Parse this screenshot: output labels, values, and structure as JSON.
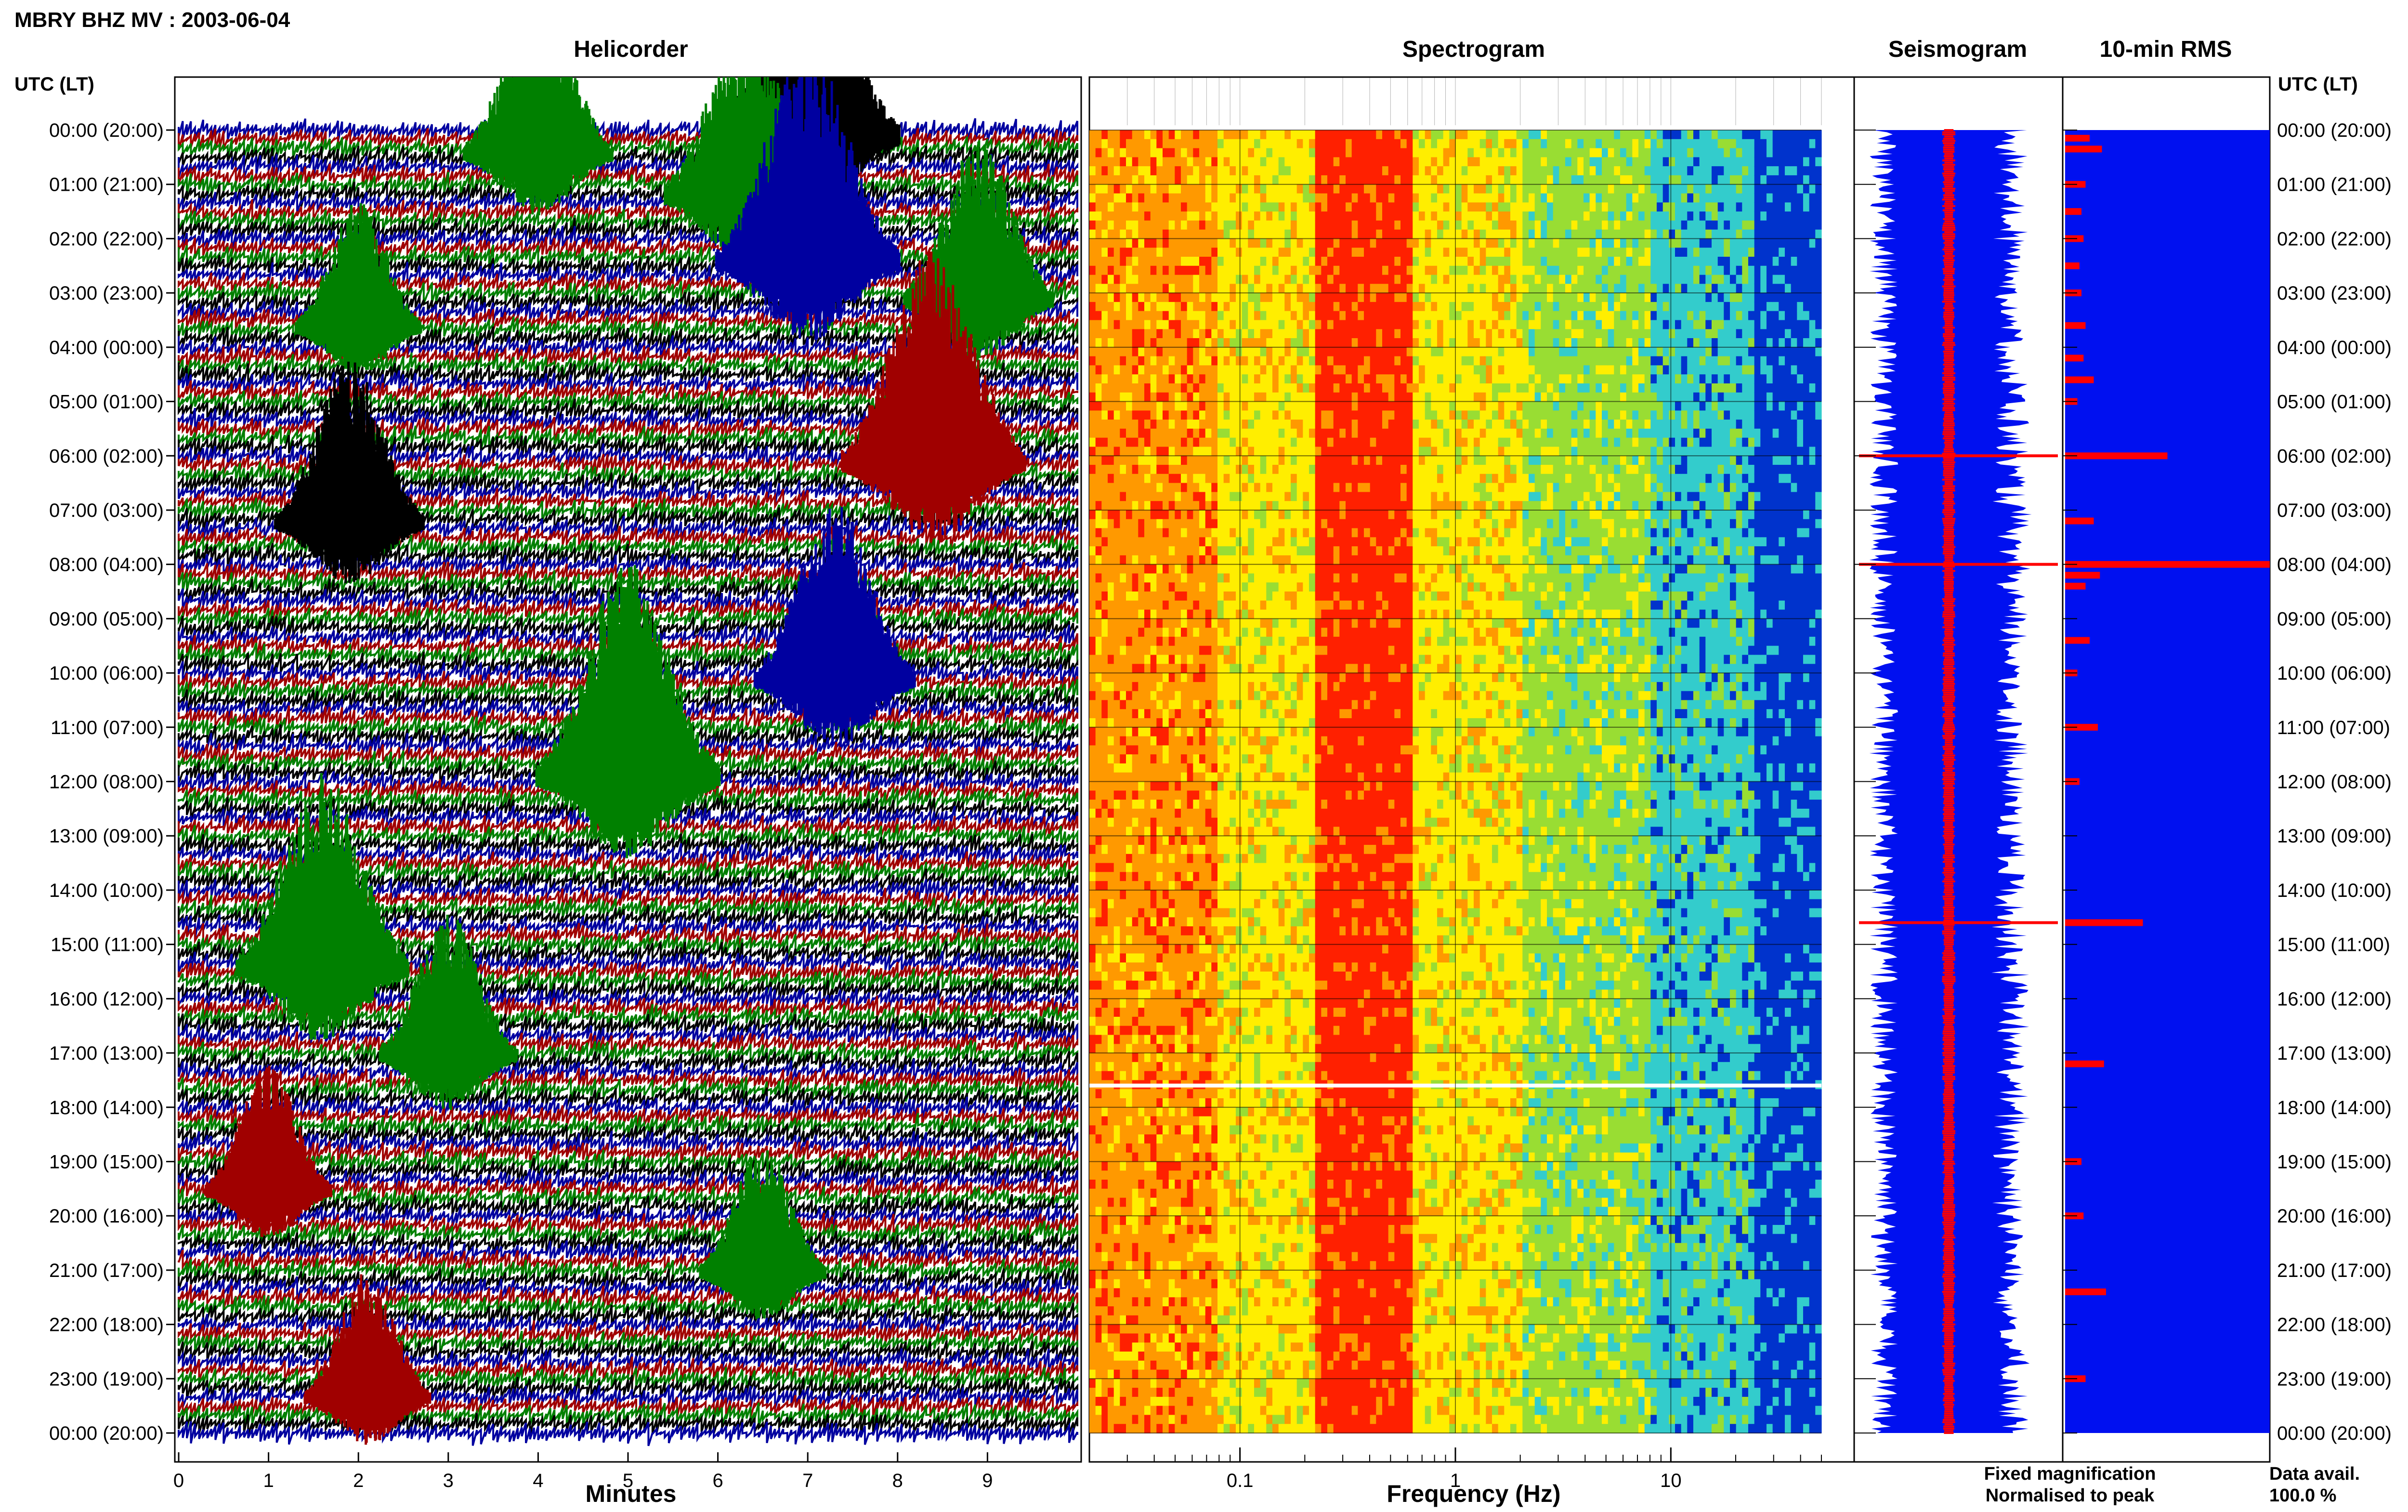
{
  "page_title": "MBRY BHZ MV : 2003-06-04",
  "panel_titles": {
    "helicorder": "Helicorder",
    "spectrogram": "Spectrogram",
    "seismogram": "Seismogram",
    "rms": "10-min RMS"
  },
  "time_axis_header": "UTC (LT)",
  "time_labels": [
    "00:00 (20:00)",
    "01:00 (21:00)",
    "02:00 (22:00)",
    "03:00 (23:00)",
    "04:00 (00:00)",
    "05:00 (01:00)",
    "06:00 (02:00)",
    "07:00 (03:00)",
    "08:00 (04:00)",
    "09:00 (05:00)",
    "10:00 (06:00)",
    "11:00 (07:00)",
    "12:00 (08:00)",
    "13:00 (09:00)",
    "14:00 (10:00)",
    "15:00 (11:00)",
    "16:00 (12:00)",
    "17:00 (13:00)",
    "18:00 (14:00)",
    "19:00 (15:00)",
    "20:00 (16:00)",
    "21:00 (17:00)",
    "22:00 (18:00)",
    "23:00 (19:00)",
    "00:00 (20:00)"
  ],
  "legend": {
    "fixed": "Fixed magnification",
    "fixed_color": "#1030ff",
    "normalised": "Normalised to peak",
    "normalised_color": "#ff1010"
  },
  "availability": {
    "label": "Data avail.",
    "value": "100.0 %"
  },
  "colors": {
    "trace_cycle": [
      "#0000a0",
      "#a00000",
      "#008000",
      "#000000"
    ],
    "seismogram_fill": "#0010f0",
    "seismogram_peak": "#ff0000",
    "rms_fill": "#0010f0",
    "rms_bar": "#ff0000",
    "spectrogram_scale": [
      "#ff2000",
      "#ff9900",
      "#ffee00",
      "#99dd33",
      "#33cccc",
      "#0033cc"
    ]
  },
  "chart_data": [
    {
      "type": "line",
      "name": "helicorder",
      "title": "Helicorder",
      "xlabel": "Minutes",
      "ylabel": "UTC (LT)",
      "x_ticks": [
        "0",
        "1",
        "2",
        "3",
        "4",
        "5",
        "6",
        "7",
        "8",
        "9"
      ],
      "xlim": [
        0,
        10
      ],
      "rows_per_hour": 6,
      "event_bursts": [
        {
          "hour": 0.2,
          "minute": 7.0,
          "color": "#000000",
          "amplitude": 1.0
        },
        {
          "hour": 0.5,
          "minute": 4.0,
          "color": "#008000",
          "amplitude": 0.7
        },
        {
          "hour": 1.3,
          "minute": 6.3,
          "color": "#008000",
          "amplitude": 0.8
        },
        {
          "hour": 2.5,
          "minute": 7.0,
          "color": "#0000a0",
          "amplitude": 1.0
        },
        {
          "hour": 3.2,
          "minute": 8.9,
          "color": "#008000",
          "amplitude": 0.7
        },
        {
          "hour": 3.7,
          "minute": 2.0,
          "color": "#008000",
          "amplitude": 0.5
        },
        {
          "hour": 6.2,
          "minute": 8.4,
          "color": "#a00000",
          "amplitude": 1.0
        },
        {
          "hour": 7.3,
          "minute": 1.9,
          "color": "#000000",
          "amplitude": 0.7
        },
        {
          "hour": 10.2,
          "minute": 7.3,
          "color": "#0000a0",
          "amplitude": 0.8
        },
        {
          "hour": 12.0,
          "minute": 5.0,
          "color": "#008000",
          "amplitude": 1.0
        },
        {
          "hour": 15.5,
          "minute": 1.6,
          "color": "#008000",
          "amplitude": 0.9
        },
        {
          "hour": 17.1,
          "minute": 3.0,
          "color": "#008000",
          "amplitude": 0.6
        },
        {
          "hour": 19.6,
          "minute": 1.0,
          "color": "#a00000",
          "amplitude": 0.5
        },
        {
          "hour": 21.1,
          "minute": 6.5,
          "color": "#008000",
          "amplitude": 0.5
        },
        {
          "hour": 23.4,
          "minute": 2.1,
          "color": "#a00000",
          "amplitude": 0.5
        }
      ]
    },
    {
      "type": "heatmap",
      "name": "spectrogram",
      "title": "Spectrogram",
      "xlabel": "Frequency (Hz)",
      "x_scale": "log",
      "xlim": [
        0.02,
        50
      ],
      "x_ticks": [
        "0.1",
        "1",
        "10"
      ],
      "x_tick_values": [
        0.1,
        1,
        10
      ],
      "dominant_band_hz": [
        0.25,
        0.6
      ],
      "data_gap_hour": 17.6
    },
    {
      "type": "area",
      "name": "seismogram",
      "title": "Seismogram",
      "legend": [
        "Fixed magnification",
        "Normalised to peak"
      ],
      "peak_hours": [
        6.0,
        8.0,
        14.6
      ]
    },
    {
      "type": "bar",
      "name": "rms",
      "title": "10-min RMS",
      "orientation": "horizontal",
      "hours": [
        0.15,
        0.35,
        1.0,
        1.5,
        2.0,
        2.5,
        3.0,
        3.6,
        4.2,
        4.6,
        5.0,
        6.0,
        7.2,
        8.0,
        8.2,
        8.4,
        9.4,
        10.0,
        11.0,
        12.0,
        14.6,
        17.2,
        19.0,
        20.0,
        21.4,
        23.0
      ],
      "values": [
        0.12,
        0.18,
        0.1,
        0.08,
        0.09,
        0.07,
        0.08,
        0.1,
        0.09,
        0.14,
        0.06,
        0.5,
        0.14,
        1.0,
        0.17,
        0.1,
        0.12,
        0.06,
        0.16,
        0.07,
        0.38,
        0.19,
        0.08,
        0.09,
        0.2,
        0.1
      ],
      "xlim": [
        0,
        1
      ]
    }
  ]
}
